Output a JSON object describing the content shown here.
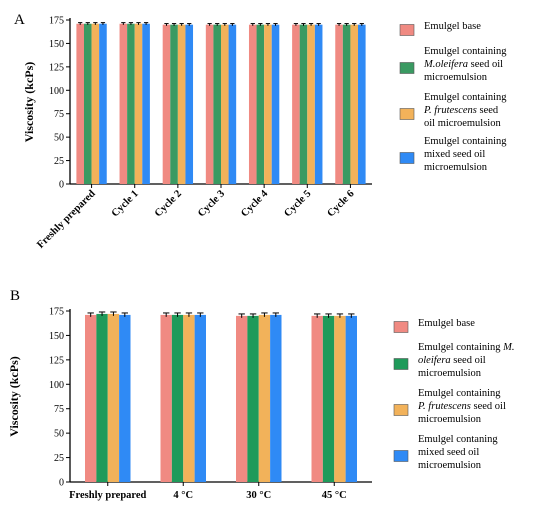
{
  "chart_data": [
    {
      "panel_label": "A",
      "type": "bar",
      "ylabel": "Viscosity (kcPs)",
      "ylim": [
        0,
        175
      ],
      "yticks": [
        0,
        25,
        50,
        75,
        100,
        125,
        150,
        175
      ],
      "categories": [
        "Freshly prepared",
        "Cycle 1",
        "Cycle 2",
        "Cycle 3",
        "Cycle 4",
        "Cycle 5",
        "Cycle 6"
      ],
      "series": [
        {
          "name": "Emulgel base",
          "values": [
            171,
            171,
            170,
            170,
            170,
            170,
            170
          ],
          "color": "#f08a82"
        },
        {
          "name_lines": [
            "Emulgel containing",
            "M.oleifera seed oil",
            "microemulsion"
          ],
          "values": [
            171,
            171,
            170,
            170,
            170,
            170,
            170
          ],
          "color": "#3a9a62"
        },
        {
          "name_lines": [
            "Emulgel containing",
            "P. frutescens seed",
            "oil microemulsion"
          ],
          "values": [
            171,
            171,
            170,
            170,
            170,
            170,
            170
          ],
          "color": "#f2b25a"
        },
        {
          "name_lines": [
            "Emulgel containing",
            "mixed seed oil",
            "microemulsion"
          ],
          "values": [
            171,
            171,
            170,
            170,
            170,
            170,
            170
          ],
          "color": "#2f8af5"
        }
      ],
      "error": 1.2,
      "grid": false,
      "legend_position": "right"
    },
    {
      "panel_label": "B",
      "type": "bar",
      "ylabel": "Viscosity (kcPs)",
      "ylim": [
        0,
        175
      ],
      "yticks": [
        0,
        25,
        50,
        75,
        100,
        125,
        150,
        175
      ],
      "categories": [
        "Freshly prepared",
        "4 °C",
        "30 °C",
        "45 °C"
      ],
      "series": [
        {
          "name": "Emulgel base",
          "values": [
            171,
            171,
            170,
            170
          ],
          "color": "#f08a82"
        },
        {
          "name_lines": [
            "Emulgel containing M.",
            "oleifera seed oil",
            "microemulsion"
          ],
          "values": [
            172,
            171,
            170,
            170
          ],
          "color": "#1f9a5a"
        },
        {
          "name_lines": [
            "Emulgel containing",
            "P. frutescens seed oil",
            "microemulsion"
          ],
          "values": [
            172,
            171,
            171,
            170
          ],
          "color": "#f2b25a"
        },
        {
          "name_lines": [
            "Emulgel contaning",
            "mixed seed oil",
            "microemulsion"
          ],
          "values": [
            171,
            171,
            171,
            170
          ],
          "color": "#2f8af5"
        }
      ],
      "error": 2,
      "grid": false,
      "legend_position": "right"
    }
  ]
}
